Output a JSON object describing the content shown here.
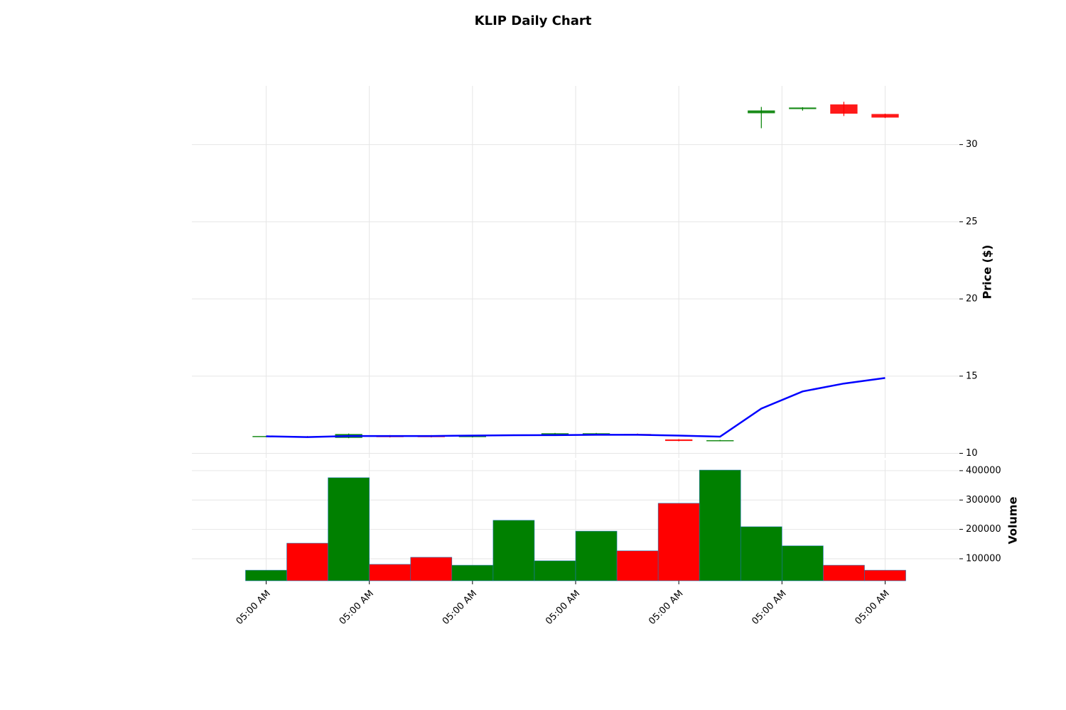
{
  "chart_data": {
    "type": "candlestick",
    "title": "KLIP Daily Chart",
    "ylabel": "Price ($)",
    "volume_label": "Volume",
    "open": [
      11.08,
      11.1,
      11.0,
      11.15,
      11.15,
      11.05,
      11.18,
      11.2,
      11.2,
      11.25,
      10.9,
      10.8,
      32.03,
      32.3,
      32.6,
      31.98
    ],
    "high": [
      11.12,
      11.12,
      11.28,
      11.18,
      11.18,
      11.18,
      11.22,
      11.32,
      11.32,
      11.28,
      10.92,
      10.87,
      32.44,
      32.42,
      32.77,
      32.0
    ],
    "low": [
      11.06,
      11.03,
      10.98,
      11.03,
      11.03,
      11.03,
      11.16,
      11.18,
      11.18,
      11.18,
      10.78,
      10.78,
      31.06,
      32.2,
      31.85,
      31.72
    ],
    "close": [
      11.12,
      11.05,
      11.25,
      11.05,
      11.05,
      11.15,
      11.22,
      11.3,
      11.3,
      11.2,
      10.8,
      10.85,
      32.21,
      32.4,
      32.0,
      31.75
    ],
    "volume": [
      61000,
      153000,
      376000,
      81000,
      105000,
      78000,
      231000,
      93000,
      194000,
      127000,
      289000,
      402000,
      209000,
      144000,
      78000,
      61000
    ],
    "moving_average": {
      "color": "#0000ff",
      "values": [
        11.1,
        11.05,
        11.12,
        11.12,
        11.12,
        11.15,
        11.17,
        11.18,
        11.2,
        11.2,
        11.15,
        11.08,
        12.9,
        14.01,
        14.52,
        14.88
      ]
    },
    "up_color": "#008000",
    "down_color": "#ff0000",
    "xlim": [
      -1.8,
      16.8
    ],
    "xticks": [
      {
        "value": 0,
        "label": "05:00 AM"
      },
      {
        "value": 2.5,
        "label": "05:00 AM"
      },
      {
        "value": 5,
        "label": "05:00 AM"
      },
      {
        "value": 7.5,
        "label": "05:00 AM"
      },
      {
        "value": 10,
        "label": "05:00 AM"
      },
      {
        "value": 12.5,
        "label": "05:00 AM"
      },
      {
        "value": 15,
        "label": "05:00 AM"
      }
    ],
    "ylim": [
      9.7,
      33.8
    ],
    "yticks": [
      10,
      15,
      20,
      25,
      30
    ],
    "volume_lim": [
      25000,
      436000
    ],
    "volume_ticks": [
      100000,
      200000,
      300000,
      400000
    ],
    "grid": true
  }
}
